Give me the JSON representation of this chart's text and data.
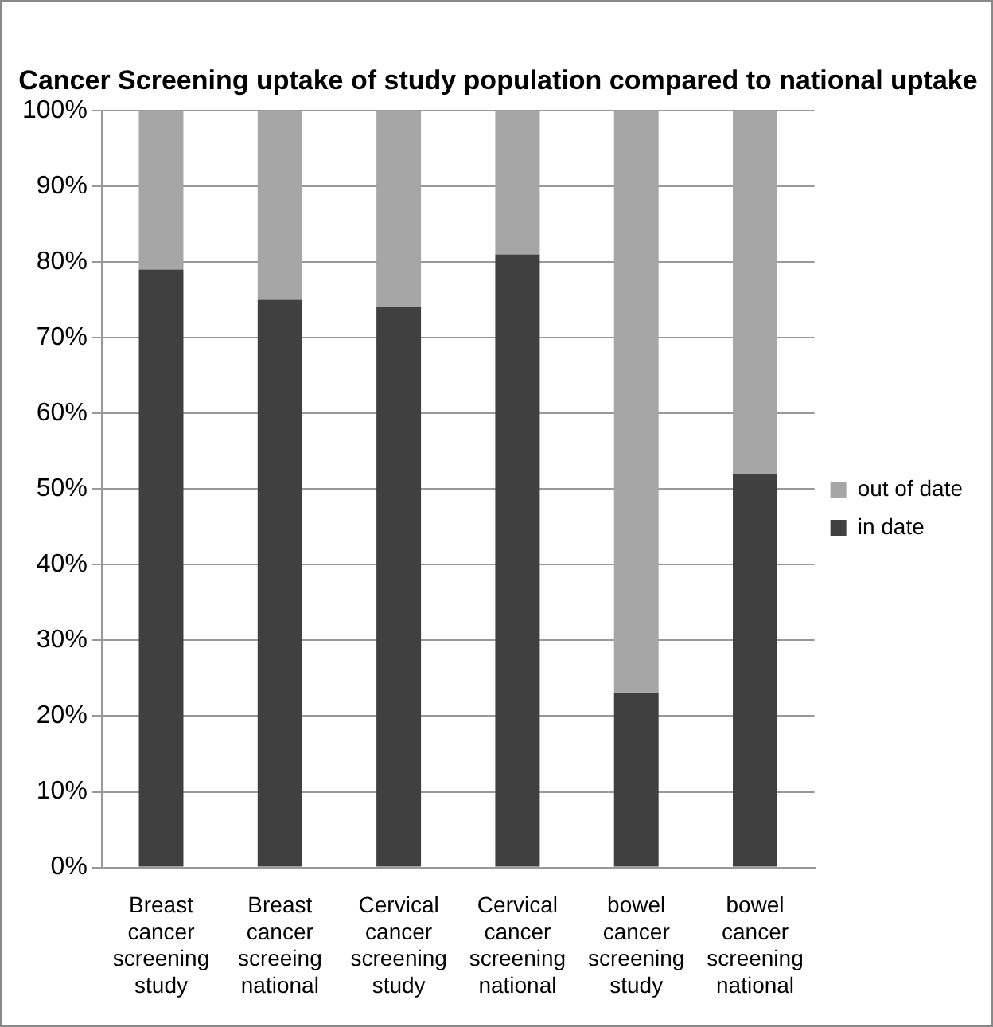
{
  "chart_data": {
    "type": "bar",
    "title": "Cancer Screening uptake of study population compared to national uptake",
    "stacked": true,
    "categories": [
      "Breast cancer screening study",
      "Breast cancer screeing national",
      "Cervical cancer screening study",
      "Cervical cancer screening national",
      "bowel cancer screening study",
      "bowel cancer screening national"
    ],
    "series": [
      {
        "name": "in date",
        "color": "#404040",
        "values": [
          79,
          75,
          74,
          81,
          23,
          52
        ]
      },
      {
        "name": "out of date",
        "color": "#a6a6a6",
        "values": [
          21,
          25,
          26,
          19,
          77,
          48
        ]
      }
    ],
    "ylim": [
      0,
      100
    ],
    "yticks": [
      {
        "value": 0,
        "label": "0%"
      },
      {
        "value": 10,
        "label": "10%"
      },
      {
        "value": 20,
        "label": "20%"
      },
      {
        "value": 30,
        "label": "30%"
      },
      {
        "value": 40,
        "label": "40%"
      },
      {
        "value": 50,
        "label": "50%"
      },
      {
        "value": 60,
        "label": "60%"
      },
      {
        "value": 70,
        "label": "70%"
      },
      {
        "value": 80,
        "label": "80%"
      },
      {
        "value": 90,
        "label": "90%"
      },
      {
        "value": 100,
        "label": "100%"
      }
    ],
    "grid": "y",
    "legend": "right"
  }
}
